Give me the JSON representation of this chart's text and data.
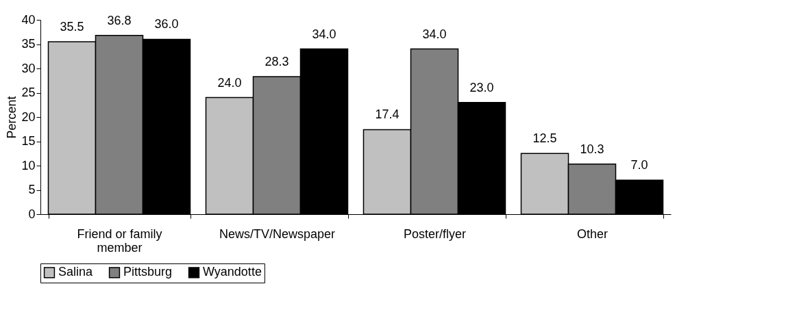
{
  "chart_data": {
    "type": "bar",
    "ylabel": "Percent",
    "categories": [
      "Friend or family member",
      "News/TV/Newspaper",
      "Poster/flyer",
      "Other"
    ],
    "series": [
      {
        "name": "Salina",
        "color": "#c0c0c0",
        "values": [
          35.5,
          24.0,
          17.4,
          12.5
        ],
        "value_labels": [
          "35.5",
          "24.0",
          "17.4",
          "12.5"
        ]
      },
      {
        "name": "Pittsburg",
        "color": "#808080",
        "values": [
          36.8,
          28.3,
          34.0,
          10.3
        ],
        "value_labels": [
          "36.8",
          "28.3",
          "34.0",
          "10.3"
        ]
      },
      {
        "name": "Wyandotte",
        "color": "#000000",
        "values": [
          36.0,
          34.0,
          23.0,
          7.0
        ],
        "value_labels": [
          "36.0",
          "34.0",
          "23.0",
          "7.0"
        ]
      }
    ],
    "ylim": [
      0,
      40
    ],
    "yticks": [
      0,
      5,
      10,
      15,
      20,
      25,
      30,
      35,
      40
    ],
    "grid": false,
    "legend": "bottom left"
  }
}
